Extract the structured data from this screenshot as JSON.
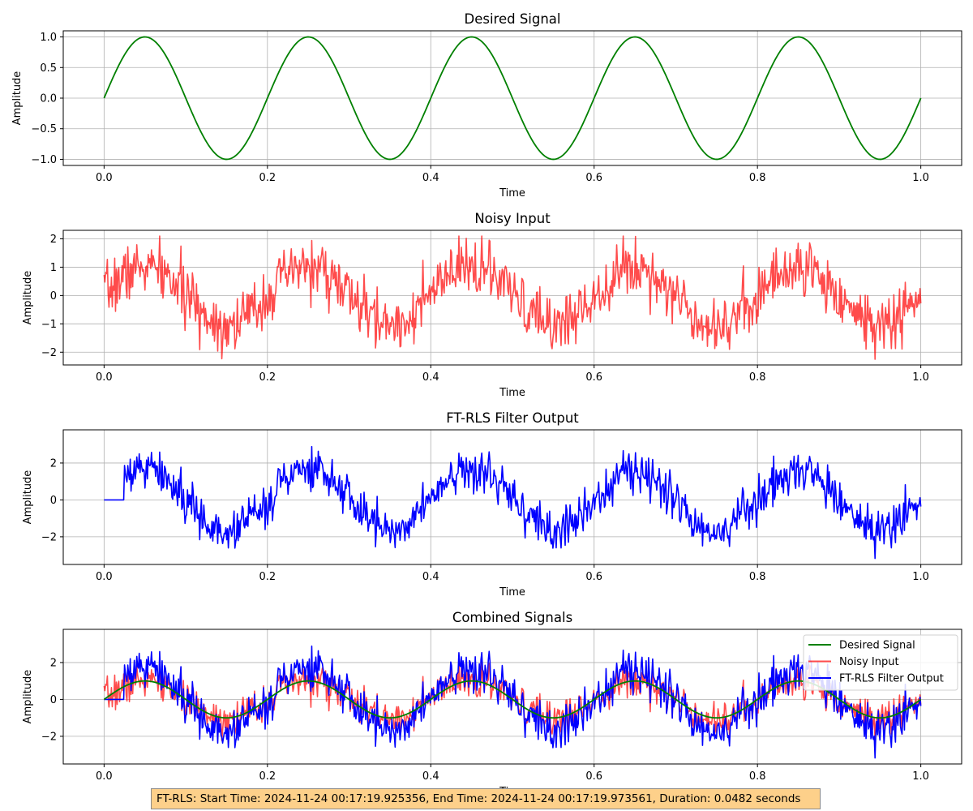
{
  "chart_data": [
    {
      "type": "line",
      "title": "Desired Signal",
      "xlabel": "Time",
      "ylabel": "Amplitude",
      "xlim": [
        -0.05,
        1.05
      ],
      "ylim": [
        -1.1,
        1.1
      ],
      "xticks": [
        "0.0",
        "0.2",
        "0.4",
        "0.6",
        "0.8",
        "1.0"
      ],
      "yticks": [
        "1.0",
        "0.5",
        "0.0",
        "−0.5",
        "−1.0"
      ],
      "grid": true,
      "series": [
        {
          "kind": "sine",
          "frequency": 5,
          "amplitude": 1.0,
          "color": "#008000",
          "samples": {
            "x": [
              0.0,
              0.05,
              0.1,
              0.15,
              0.2,
              0.25,
              0.3,
              0.35,
              0.4,
              0.45,
              0.5,
              0.55,
              0.6,
              0.65,
              0.7,
              0.75,
              0.8,
              0.85,
              0.9,
              0.95,
              1.0
            ],
            "y": [
              0,
              1,
              0,
              -1,
              0,
              1,
              0,
              -1,
              0,
              1,
              0,
              -1,
              0,
              1,
              0,
              -1,
              0,
              1,
              0,
              -1,
              0
            ]
          }
        }
      ]
    },
    {
      "type": "line",
      "title": "Noisy Input",
      "xlabel": "Time",
      "ylabel": "Amplitude",
      "xlim": [
        -0.05,
        1.05
      ],
      "ylim": [
        -2.45,
        2.3
      ],
      "xticks": [
        "0.0",
        "0.2",
        "0.4",
        "0.6",
        "0.8",
        "1.0"
      ],
      "yticks": [
        "2",
        "1",
        "0",
        "−1",
        "−2"
      ],
      "grid": true,
      "series": [
        {
          "kind": "noisy_sine",
          "frequency": 5,
          "amplitude": 1.0,
          "noise_std": 0.5,
          "seed": 7,
          "color": "#ff0000",
          "alpha": 0.7,
          "range": [
            -2.25,
            2.1
          ]
        }
      ]
    },
    {
      "type": "line",
      "title": "FT-RLS Filter Output",
      "xlabel": "Time",
      "ylabel": "Amplitude",
      "xlim": [
        -0.05,
        1.05
      ],
      "ylim": [
        -3.5,
        3.8
      ],
      "xticks": [
        "0.0",
        "0.2",
        "0.4",
        "0.6",
        "0.8",
        "1.0"
      ],
      "yticks": [
        "2",
        "0",
        "−2"
      ],
      "grid": true,
      "series": [
        {
          "kind": "filter_output",
          "frequency": 5,
          "gain": 1.6,
          "noise_std": 0.65,
          "seed": 7,
          "zero_until": 0.025,
          "color": "#0000ff",
          "range": [
            -3.2,
            3.5
          ]
        }
      ]
    },
    {
      "type": "line",
      "title": "Combined Signals",
      "xlabel": "Time",
      "ylabel": "Amplitude",
      "xlim": [
        -0.05,
        1.05
      ],
      "ylim": [
        -3.5,
        3.8
      ],
      "xticks": [
        "0.0",
        "0.2",
        "0.4",
        "0.6",
        "0.8",
        "1.0"
      ],
      "yticks": [
        "2",
        "0",
        "−2"
      ],
      "grid": true,
      "legend": "top-right",
      "series": [
        {
          "name": "Desired Signal",
          "color": "#008000"
        },
        {
          "name": "Noisy Input",
          "color": "#ff0000",
          "alpha": 0.7
        },
        {
          "name": "FT-RLS Filter Output",
          "color": "#0000ff"
        }
      ]
    }
  ],
  "footer": {
    "text": "FT-RLS: Start Time: 2024-11-24 00:17:19.925356, End Time: 2024-11-24 00:17:19.973561, Duration: 0.0482 seconds",
    "background": "#fdd08a"
  }
}
